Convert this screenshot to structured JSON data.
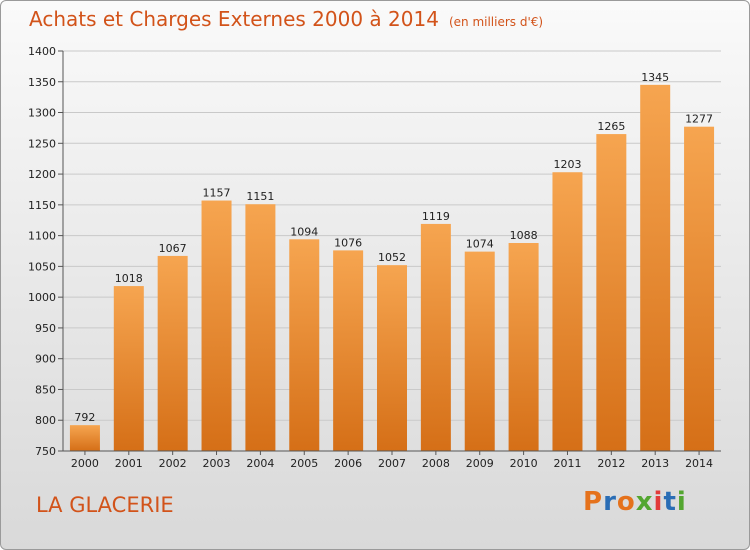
{
  "title": "Achats et Charges Externes 2000 à 2014",
  "unit_note": "(en milliers d'€)",
  "commune": "LA GLACERIE",
  "logo": {
    "text": "Proxiti",
    "colors": [
      "#e5721c",
      "#2a6db5",
      "#e5721c",
      "#53a630",
      "#e23a3a",
      "#2a6db5",
      "#53a630"
    ]
  },
  "colors": {
    "bar_light": "#f6a550",
    "bar_dark": "#d56f17",
    "title": "#d2531a"
  },
  "chart_data": {
    "type": "bar",
    "title": "Achats et Charges Externes 2000 à 2014",
    "xlabel": "",
    "ylabel": "",
    "categories": [
      "2000",
      "2001",
      "2002",
      "2003",
      "2004",
      "2005",
      "2006",
      "2007",
      "2008",
      "2009",
      "2010",
      "2011",
      "2012",
      "2013",
      "2014"
    ],
    "values": [
      792,
      1018,
      1067,
      1157,
      1151,
      1094,
      1076,
      1052,
      1119,
      1074,
      1088,
      1203,
      1265,
      1345,
      1277
    ],
    "ylim": [
      750,
      1400
    ],
    "yticks": [
      750,
      800,
      850,
      900,
      950,
      1000,
      1050,
      1100,
      1150,
      1200,
      1250,
      1300,
      1350,
      1400
    ],
    "grid": true,
    "legend": "none"
  }
}
